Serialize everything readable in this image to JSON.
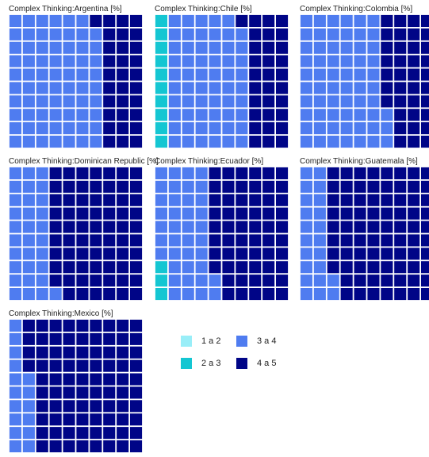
{
  "chart_data": {
    "type": "waffle",
    "categories": [
      "1 a 2",
      "2 a 3",
      "3 a 4",
      "4 a 5"
    ],
    "colors": {
      "1 a 2": "#99EEF8",
      "2 a 3": "#14C6D2",
      "3 a 4": "#4F7CF0",
      "4 a 5": "#000587"
    },
    "panels": [
      {
        "title": "Complex Thinking:Argentina [%]",
        "values": [
          0,
          0,
          69,
          31
        ]
      },
      {
        "title": "Complex Thinking:Chile [%]",
        "values": [
          0,
          10,
          59,
          31
        ]
      },
      {
        "title": "Complex Thinking:Colombia [%]",
        "values": [
          0,
          0,
          63,
          37
        ]
      },
      {
        "title": "Complex Thinking:Dominican Republic [%]",
        "values": [
          0,
          0,
          31,
          69
        ]
      },
      {
        "title": "Complex Thinking:Ecuador [%]",
        "values": [
          0,
          3,
          39,
          58
        ]
      },
      {
        "title": "Complex Thinking:Guatemala [%]",
        "values": [
          0,
          0,
          22,
          78
        ]
      },
      {
        "title": "Complex Thinking:Mexico [%]",
        "values": [
          0,
          0,
          16,
          84
        ]
      }
    ]
  }
}
